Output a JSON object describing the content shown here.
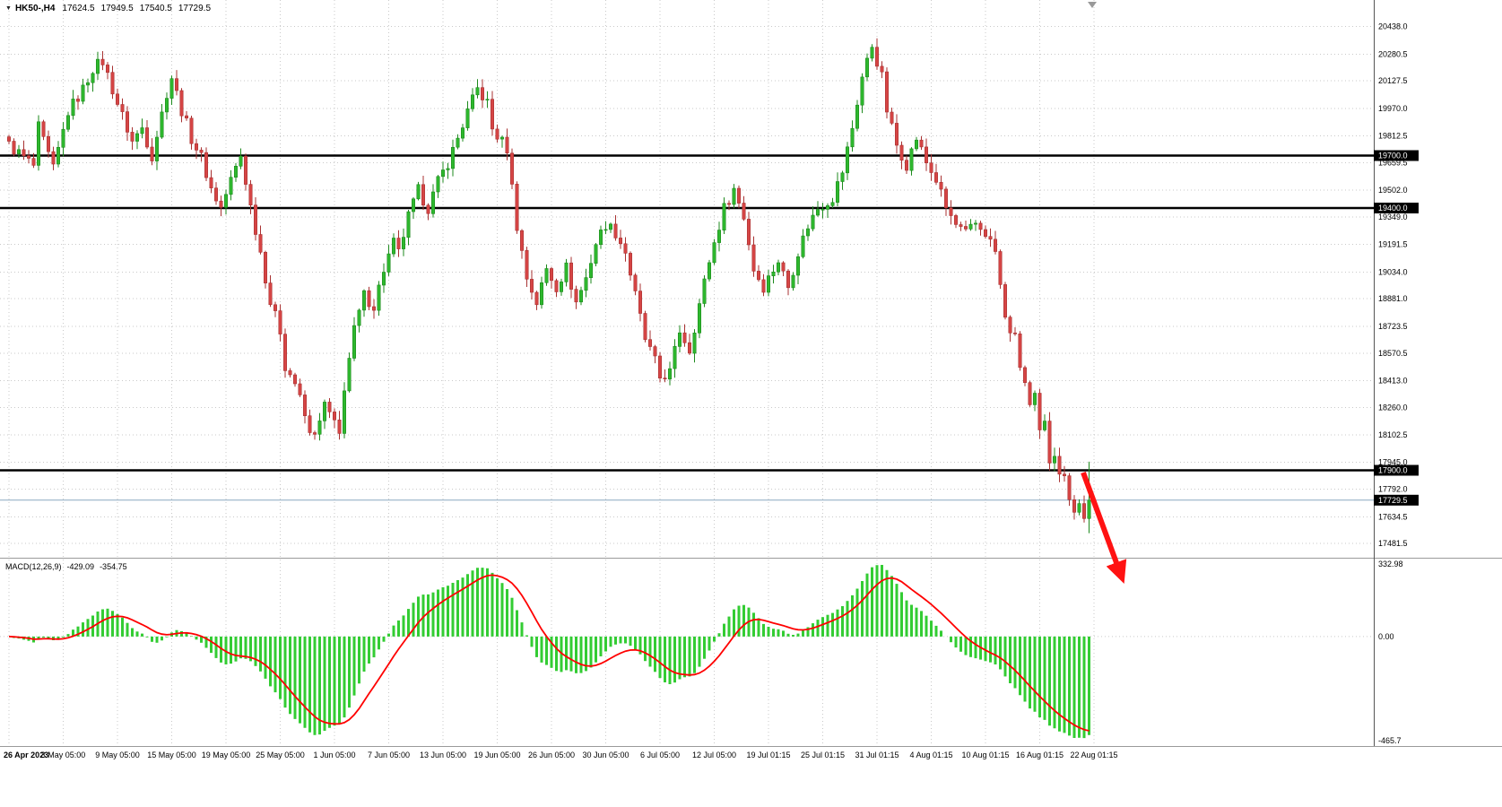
{
  "header": {
    "dropdown_icon": "▼",
    "symbol": "HK50-,H4",
    "open": "17624.5",
    "high": "17949.5",
    "low": "17540.5",
    "close": "17729.5"
  },
  "macd_label": {
    "name": "MACD(12,26,9)",
    "macd_value": "-429.09",
    "signal_value": "-354.75"
  },
  "colors": {
    "up": "#2eb82e",
    "up_border": "#1d8a1d",
    "down": "#d64545",
    "down_border": "#a83232",
    "macd_hist": "#33cc33",
    "macd_signal": "#ff0000",
    "grid": "#c9c9c9",
    "sr_line": "#000000",
    "bid_line": "#8aa8c0",
    "badge_bg": "#000000",
    "badge_fg": "#ffffff",
    "annotation": "#ff1212"
  },
  "chart_data": {
    "type": "candlestick",
    "symbol": "HK50-",
    "timeframe": "H4",
    "view": {
      "price_top": 20590,
      "price_bottom": 17400
    },
    "price_ticks": [
      "20438.0",
      "20280.5",
      "20127.5",
      "19970.0",
      "19812.5",
      "19659.5",
      "19502.0",
      "19349.0",
      "19191.5",
      "19034.0",
      "18881.0",
      "18723.5",
      "18570.5",
      "18413.0",
      "18260.0",
      "18102.5",
      "17945.0",
      "17792.0",
      "17634.5",
      "17481.5"
    ],
    "sr_levels": [
      {
        "price": 19700.0,
        "label": "19700.0"
      },
      {
        "price": 19400.0,
        "label": "19400.0"
      },
      {
        "price": 17900.0,
        "label": "17900.0"
      }
    ],
    "bid": {
      "price": 17729.5,
      "label": "17729.5"
    },
    "x_labels": [
      "26 Apr 2023",
      "3 May 05:00",
      "9 May 05:00",
      "15 May 05:00",
      "19 May 05:00",
      "25 May 05:00",
      "1 Jun 05:00",
      "7 Jun 05:00",
      "13 Jun 05:00",
      "19 Jun 05:00",
      "26 Jun 05:00",
      "30 Jun 05:00",
      "6 Jul 05:00",
      "12 Jul 05:00",
      "19 Jul 01:15",
      "25 Jul 01:15",
      "31 Jul 01:15",
      "4 Aug 01:15",
      "10 Aug 01:15",
      "16 Aug 01:15",
      "22 Aug 01:15"
    ],
    "bars_per_label": 11,
    "bar_count": 220,
    "close_waypoints": [
      [
        0,
        19760
      ],
      [
        3,
        19690
      ],
      [
        5,
        19640
      ],
      [
        6,
        19860
      ],
      [
        9,
        19620
      ],
      [
        12,
        19950
      ],
      [
        15,
        20080
      ],
      [
        17,
        20200
      ],
      [
        19,
        20240
      ],
      [
        22,
        20000
      ],
      [
        25,
        19780
      ],
      [
        27,
        19860
      ],
      [
        29,
        19700
      ],
      [
        32,
        20060
      ],
      [
        33,
        20150
      ],
      [
        35,
        19960
      ],
      [
        37,
        19800
      ],
      [
        39,
        19690
      ],
      [
        41,
        19510
      ],
      [
        43,
        19400
      ],
      [
        45,
        19560
      ],
      [
        47,
        19700
      ],
      [
        49,
        19410
      ],
      [
        51,
        19150
      ],
      [
        53,
        18860
      ],
      [
        55,
        18700
      ],
      [
        56,
        18500
      ],
      [
        58,
        18400
      ],
      [
        60,
        18210
      ],
      [
        61,
        18100
      ],
      [
        63,
        18160
      ],
      [
        64,
        18280
      ],
      [
        66,
        18160
      ],
      [
        67,
        18100
      ],
      [
        68,
        18380
      ],
      [
        70,
        18700
      ],
      [
        72,
        18900
      ],
      [
        74,
        18840
      ],
      [
        76,
        19050
      ],
      [
        78,
        19200
      ],
      [
        79,
        19140
      ],
      [
        81,
        19350
      ],
      [
        83,
        19500
      ],
      [
        85,
        19400
      ],
      [
        87,
        19550
      ],
      [
        89,
        19660
      ],
      [
        91,
        19800
      ],
      [
        93,
        19950
      ],
      [
        95,
        20080
      ],
      [
        97,
        20000
      ],
      [
        98,
        19850
      ],
      [
        101,
        19740
      ],
      [
        103,
        19300
      ],
      [
        105,
        19000
      ],
      [
        107,
        18860
      ],
      [
        109,
        19050
      ],
      [
        111,
        18950
      ],
      [
        113,
        19060
      ],
      [
        115,
        18860
      ],
      [
        117,
        19000
      ],
      [
        119,
        19200
      ],
      [
        121,
        19310
      ],
      [
        123,
        19260
      ],
      [
        125,
        19150
      ],
      [
        127,
        18900
      ],
      [
        129,
        18650
      ],
      [
        131,
        18520
      ],
      [
        132,
        18430
      ],
      [
        134,
        18460
      ],
      [
        136,
        18700
      ],
      [
        138,
        18590
      ],
      [
        140,
        18850
      ],
      [
        142,
        19100
      ],
      [
        145,
        19400
      ],
      [
        147,
        19510
      ],
      [
        149,
        19350
      ],
      [
        151,
        19050
      ],
      [
        153,
        18950
      ],
      [
        156,
        19100
      ],
      [
        158,
        18950
      ],
      [
        160,
        19150
      ],
      [
        162,
        19300
      ],
      [
        164,
        19400
      ],
      [
        167,
        19460
      ],
      [
        169,
        19610
      ],
      [
        171,
        19860
      ],
      [
        173,
        20150
      ],
      [
        175,
        20330
      ],
      [
        177,
        20150
      ],
      [
        178,
        19960
      ],
      [
        180,
        19760
      ],
      [
        182,
        19650
      ],
      [
        184,
        19800
      ],
      [
        186,
        19660
      ],
      [
        188,
        19560
      ],
      [
        190,
        19400
      ],
      [
        192,
        19300
      ],
      [
        194,
        19250
      ],
      [
        196,
        19310
      ],
      [
        198,
        19260
      ],
      [
        200,
        19150
      ],
      [
        202,
        18760
      ],
      [
        204,
        18650
      ],
      [
        205,
        18500
      ],
      [
        206,
        18400
      ],
      [
        207,
        18260
      ],
      [
        208,
        18310
      ],
      [
        209,
        18110
      ],
      [
        210,
        18160
      ],
      [
        211,
        17960
      ],
      [
        212,
        18010
      ],
      [
        213,
        17900
      ],
      [
        214,
        17850
      ],
      [
        215,
        17760
      ],
      [
        216,
        17660
      ],
      [
        217,
        17710
      ],
      [
        218,
        17624.5
      ],
      [
        219,
        17729.5
      ]
    ],
    "current_bar": {
      "open": 17624.5,
      "high": 17949.5,
      "low": 17540.5,
      "close": 17729.5
    },
    "macd": {
      "label": "MACD(12,26,9)",
      "fast": 12,
      "slow": 26,
      "signal": 9,
      "current_macd": -429.09,
      "current_signal": -354.75,
      "axis_max": 332.98,
      "axis_min": -465.7,
      "axis_max_label": "332.98",
      "axis_zero_label": "0.00",
      "axis_min_label": "-465.7"
    },
    "annotation": {
      "type": "arrow",
      "direction": "down-right",
      "from_xy": [
        1208,
        527
      ],
      "to_xy": [
        1247,
        633
      ]
    }
  }
}
